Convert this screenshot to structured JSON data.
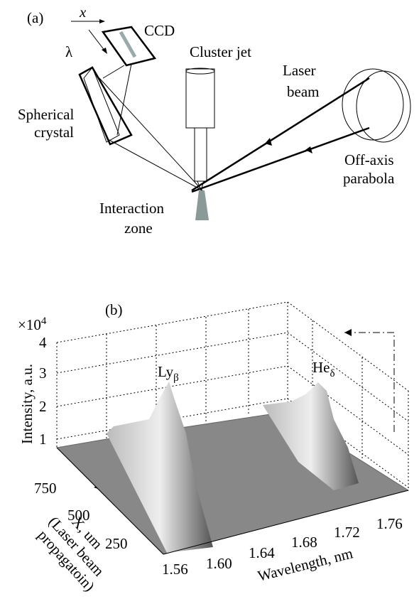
{
  "panel_a": {
    "label": "(a)",
    "ccd": "CCD",
    "x_axis": "x",
    "lambda": "λ",
    "cluster_jet": "Cluster jet",
    "laser_beam": [
      "Laser",
      "beam"
    ],
    "crystal": [
      "Spherical",
      "crystal"
    ],
    "parabola": [
      "Off-axis",
      "parabola"
    ],
    "interaction": [
      "Interaction",
      "zone"
    ]
  },
  "panel_b": {
    "label": "(b)",
    "multiplier": {
      "base": "×10",
      "sup": "4"
    },
    "z_label": "Intensity, a.u.",
    "z_ticks": [
      "4",
      "3",
      "2",
      "1"
    ],
    "peak_1": {
      "base": "Ly",
      "sub": "β"
    },
    "peak_2": {
      "base": "He",
      "sub": "δ"
    },
    "x_ticks": [
      "750",
      "500",
      "250"
    ],
    "x_label": [
      "X, um",
      "(Laser beam",
      "propagatoin)"
    ],
    "w_ticks": [
      "1.56",
      "1.60",
      "1.64",
      "1.68",
      "1.72",
      "1.76"
    ],
    "w_label": "Wavelength, nm"
  }
}
